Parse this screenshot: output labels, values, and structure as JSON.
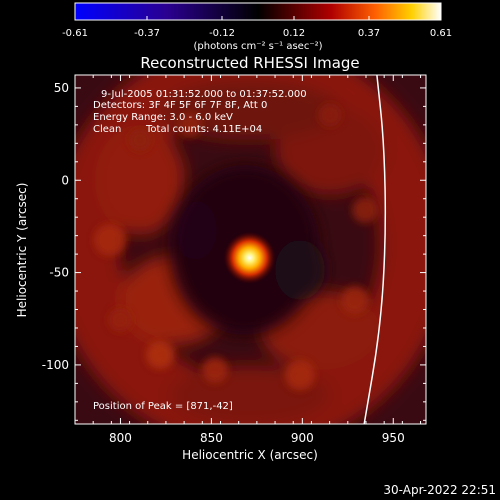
{
  "colorbar": {
    "tick_labels": [
      "-0.61",
      "-0.37",
      "-0.12",
      "0.12",
      "0.37",
      "0.61"
    ],
    "tick_values": [
      -0.61,
      -0.37,
      -0.12,
      0.12,
      0.37,
      0.61
    ],
    "unit_label": "(photons cm⁻² s⁻¹ asec⁻²)",
    "range": [
      -0.61,
      0.61
    ],
    "colormap": [
      "#0000ff",
      "#000000",
      "#ff0000",
      "#ffffff"
    ]
  },
  "title": "Reconstructed RHESSI Image",
  "info": {
    "time": "9-Jul-2005 01:31:52.000 to 01:37:52.000",
    "detectors": "Detectors: 3F 4F 5F 6F 7F 8F, Att 0",
    "energy": "Energy Range: 3.0 - 6.0 keV",
    "method": "Clean",
    "counts": "Total counts: 4.11E+04"
  },
  "peak_text": "Position of Peak = [871,-42]",
  "timestamp": "30-Apr-2022 22:51",
  "chart_data": {
    "type": "heatmap",
    "title": "Reconstructed RHESSI Image",
    "xlabel": "Heliocentric X (arcsec)",
    "ylabel": "Heliocentric Y (arcsec)",
    "xlim": [
      775,
      968
    ],
    "ylim": [
      -132,
      57
    ],
    "x_ticks": [
      800,
      850,
      900,
      950
    ],
    "y_ticks": [
      50,
      0,
      -50,
      -100
    ],
    "x_tick_labels": [
      "800",
      "850",
      "900",
      "950"
    ],
    "y_tick_labels": [
      "50",
      "0",
      "-50",
      "-100"
    ],
    "peak": {
      "x": 871,
      "y": -42,
      "value": 0.61
    },
    "limb": [
      [
        941,
        57
      ],
      [
        945,
        20
      ],
      [
        946,
        -30
      ],
      [
        943,
        -80
      ],
      [
        934,
        -132
      ]
    ],
    "color_range": [
      -0.61,
      0.61
    ],
    "colorbar_label": "(photons cm⁻² s⁻¹ asec⁻²)"
  }
}
